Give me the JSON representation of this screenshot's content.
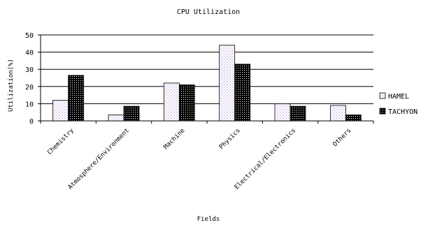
{
  "chart_data": {
    "type": "bar",
    "title": "CPU Utilization",
    "xlabel": "Fields",
    "ylabel": "Utilization(%)",
    "categories": [
      "Chemistry",
      "Atmosphere/Environment",
      "Machine",
      "Physics",
      "Electrical/Electronics",
      "Others"
    ],
    "series": [
      {
        "name": "HAMEL",
        "values": [
          12,
          3.5,
          22,
          44,
          10,
          9
        ],
        "pattern": "dotted-white"
      },
      {
        "name": "TACHYON",
        "values": [
          26.5,
          8.5,
          21,
          33,
          8.5,
          3.5
        ],
        "pattern": "black-checker"
      }
    ],
    "ylim": [
      0,
      50
    ],
    "yticks": [
      "0",
      "10",
      "20",
      "30",
      "40",
      "50"
    ],
    "grid": "horizontal",
    "legend_position": "right"
  }
}
